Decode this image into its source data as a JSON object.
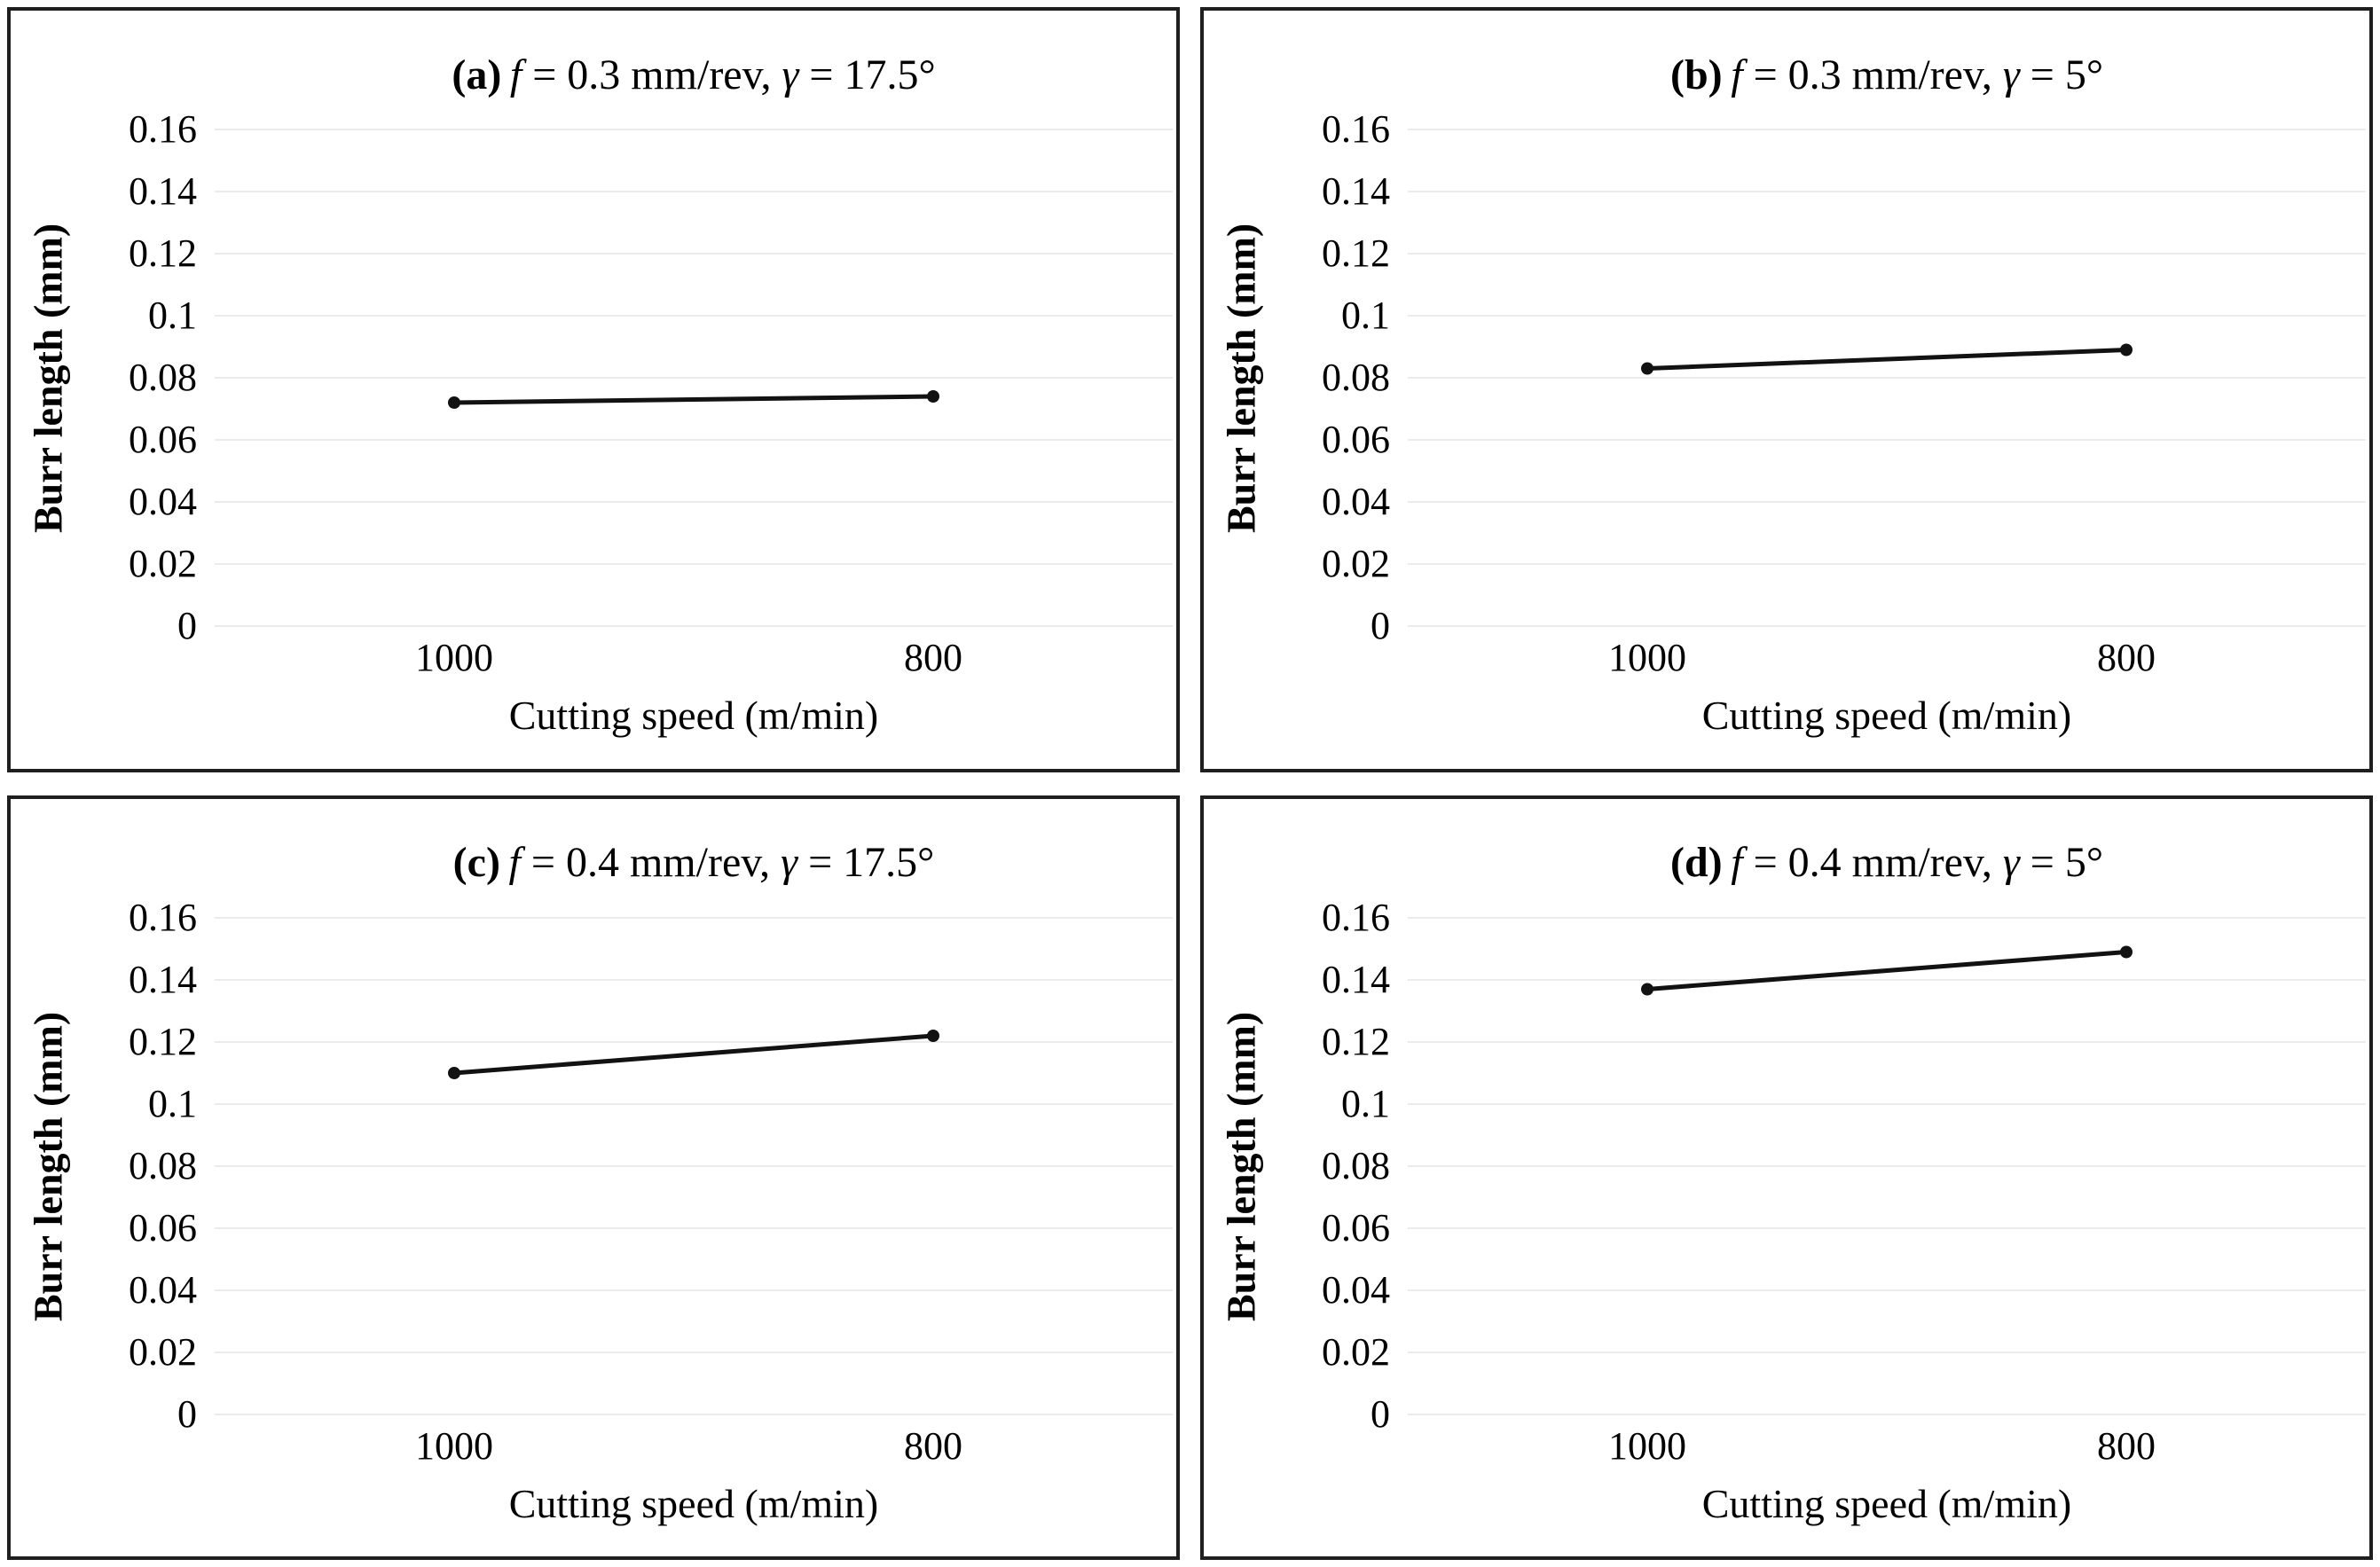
{
  "figure": {
    "description_visible_text_only": "Four line charts of burr length vs cutting speed",
    "colors": {
      "background": "#ffffff",
      "panel_border": "#1f1f1f",
      "gridline": "#ebebeb",
      "series_line": "#121212",
      "text": "#000000"
    }
  },
  "chart_data": [
    {
      "type": "line",
      "title": "(a) f = 0.3 mm/rev, γ = 17.5°",
      "title_parts": {
        "label": "(a)",
        "f": "f",
        "mid": " = 0.3 mm/rev, ",
        "gamma": "γ",
        "end": " = 17.5°"
      },
      "categories": [
        "1000",
        "800"
      ],
      "values": [
        0.072,
        0.074
      ],
      "xlabel": "Cutting speed (m/min)",
      "ylabel": "Burr length (mm)",
      "ylim": [
        0,
        0.16
      ],
      "yticks": [
        "0.16",
        "0.14",
        "0.12",
        "0.1",
        "0.08",
        "0.06",
        "0.04",
        "0.02",
        "0"
      ],
      "grid": true,
      "legend": false
    },
    {
      "type": "line",
      "title": "(b) f = 0.3 mm/rev, γ = 5°",
      "title_parts": {
        "label": "(b)",
        "f": "f",
        "mid": " = 0.3 mm/rev, ",
        "gamma": "γ",
        "end": " = 5°"
      },
      "categories": [
        "1000",
        "800"
      ],
      "values": [
        0.083,
        0.089
      ],
      "xlabel": "Cutting speed (m/min)",
      "ylabel": "Burr length (mm)",
      "ylim": [
        0,
        0.16
      ],
      "yticks": [
        "0.16",
        "0.14",
        "0.12",
        "0.1",
        "0.08",
        "0.06",
        "0.04",
        "0.02",
        "0"
      ],
      "grid": true,
      "legend": false
    },
    {
      "type": "line",
      "title": "(c) f = 0.4 mm/rev, γ = 17.5°",
      "title_parts": {
        "label": "(c)",
        "f": "f",
        "mid": " = 0.4 mm/rev, ",
        "gamma": "γ",
        "end": " = 17.5°"
      },
      "categories": [
        "1000",
        "800"
      ],
      "values": [
        0.11,
        0.122
      ],
      "xlabel": "Cutting speed (m/min)",
      "ylabel": "Burr length (mm)",
      "ylim": [
        0,
        0.16
      ],
      "yticks": [
        "0.16",
        "0.14",
        "0.12",
        "0.1",
        "0.08",
        "0.06",
        "0.04",
        "0.02",
        "0"
      ],
      "grid": true,
      "legend": false
    },
    {
      "type": "line",
      "title": "(d) f = 0.4 mm/rev, γ = 5°",
      "title_parts": {
        "label": "(d)",
        "f": "f",
        "mid": " = 0.4 mm/rev, ",
        "gamma": "γ",
        "end": " = 5°"
      },
      "categories": [
        "1000",
        "800"
      ],
      "values": [
        0.137,
        0.149
      ],
      "xlabel": "Cutting speed (m/min)",
      "ylabel": "Burr length (mm)",
      "ylim": [
        0,
        0.16
      ],
      "yticks": [
        "0.16",
        "0.14",
        "0.12",
        "0.1",
        "0.08",
        "0.06",
        "0.04",
        "0.02",
        "0"
      ],
      "grid": true,
      "legend": false
    }
  ]
}
